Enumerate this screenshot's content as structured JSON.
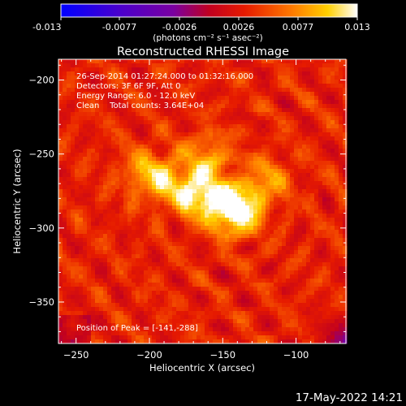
{
  "colorbar": {
    "ticks": [
      "-0.013",
      "-0.0077",
      "-0.0026",
      "0.0026",
      "0.0077",
      "0.013"
    ],
    "units_label": "(photons cm⁻² s⁻¹ asec⁻²)"
  },
  "title": "Reconstructed RHESSI Image",
  "annotations": {
    "time_range": "26-Sep-2014 01:27:24.000 to 01:32:16.000",
    "detectors": "Detectors: 3F 6F 9F, Att 0",
    "energy": "Energy Range: 6.0 - 12.0 keV",
    "method": "Clean    Total counts: 3.64E+04",
    "peak": "Position of Peak = [-141,-288]"
  },
  "footer_date": "17-May-2022 14:21",
  "colors": {
    "background": "#000000",
    "text": "#ffffff"
  },
  "chart_data": {
    "type": "heatmap",
    "title": "Reconstructed RHESSI Image",
    "xlabel": "Heliocentric X (arcsec)",
    "ylabel": "Heliocentric Y (arcsec)",
    "xlim": [
      -262,
      -66
    ],
    "ylim": [
      -378,
      -186
    ],
    "x_ticks": [
      -250,
      -200,
      -150,
      -100
    ],
    "y_ticks": [
      -200,
      -250,
      -300,
      -350
    ],
    "colorscale": "flame",
    "colorbar_range": [
      -0.013,
      0.013
    ],
    "peak_position": [
      -141,
      -288
    ],
    "peak_value": 0.013,
    "sources": [
      {
        "x": -141,
        "y": -288,
        "amplitude": 0.013
      },
      {
        "x": -165,
        "y": -278,
        "amplitude": 0.0095
      },
      {
        "x": -188,
        "y": -268,
        "amplitude": 0.006
      },
      {
        "x": -160,
        "y": -252,
        "amplitude": 0.0055
      },
      {
        "x": -120,
        "y": -268,
        "amplitude": 0.005
      },
      {
        "x": -205,
        "y": -262,
        "amplitude": 0.0045
      }
    ]
  }
}
